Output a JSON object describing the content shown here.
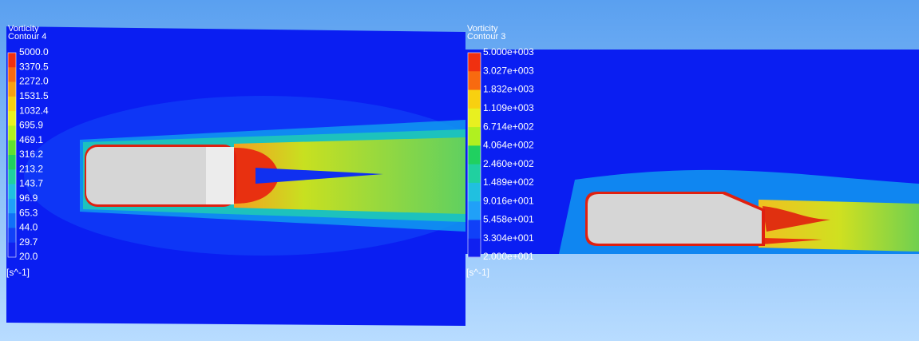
{
  "left_panel": {
    "title": "Vorticity",
    "subtitle": "Contour 4",
    "legend_labels": [
      "5000.0",
      "3370.5",
      "2272.0",
      "1531.5",
      "1032.4",
      "695.9",
      "469.1",
      "316.2",
      "213.2",
      "143.7",
      "96.9",
      "65.3",
      "44.0",
      "29.7",
      "20.0"
    ],
    "unit": "[s^-1]"
  },
  "right_panel": {
    "title": "Vorticity",
    "subtitle": "Contour 3",
    "legend_labels": [
      "5.000e+003",
      "3.027e+003",
      "1.832e+003",
      "1.109e+003",
      "6.714e+002",
      "4.064e+002",
      "2.460e+002",
      "1.489e+002",
      "9.016e+001",
      "5.458e+001",
      "3.304e+001",
      "2.000e+001"
    ],
    "unit": "[s^-1]"
  }
}
